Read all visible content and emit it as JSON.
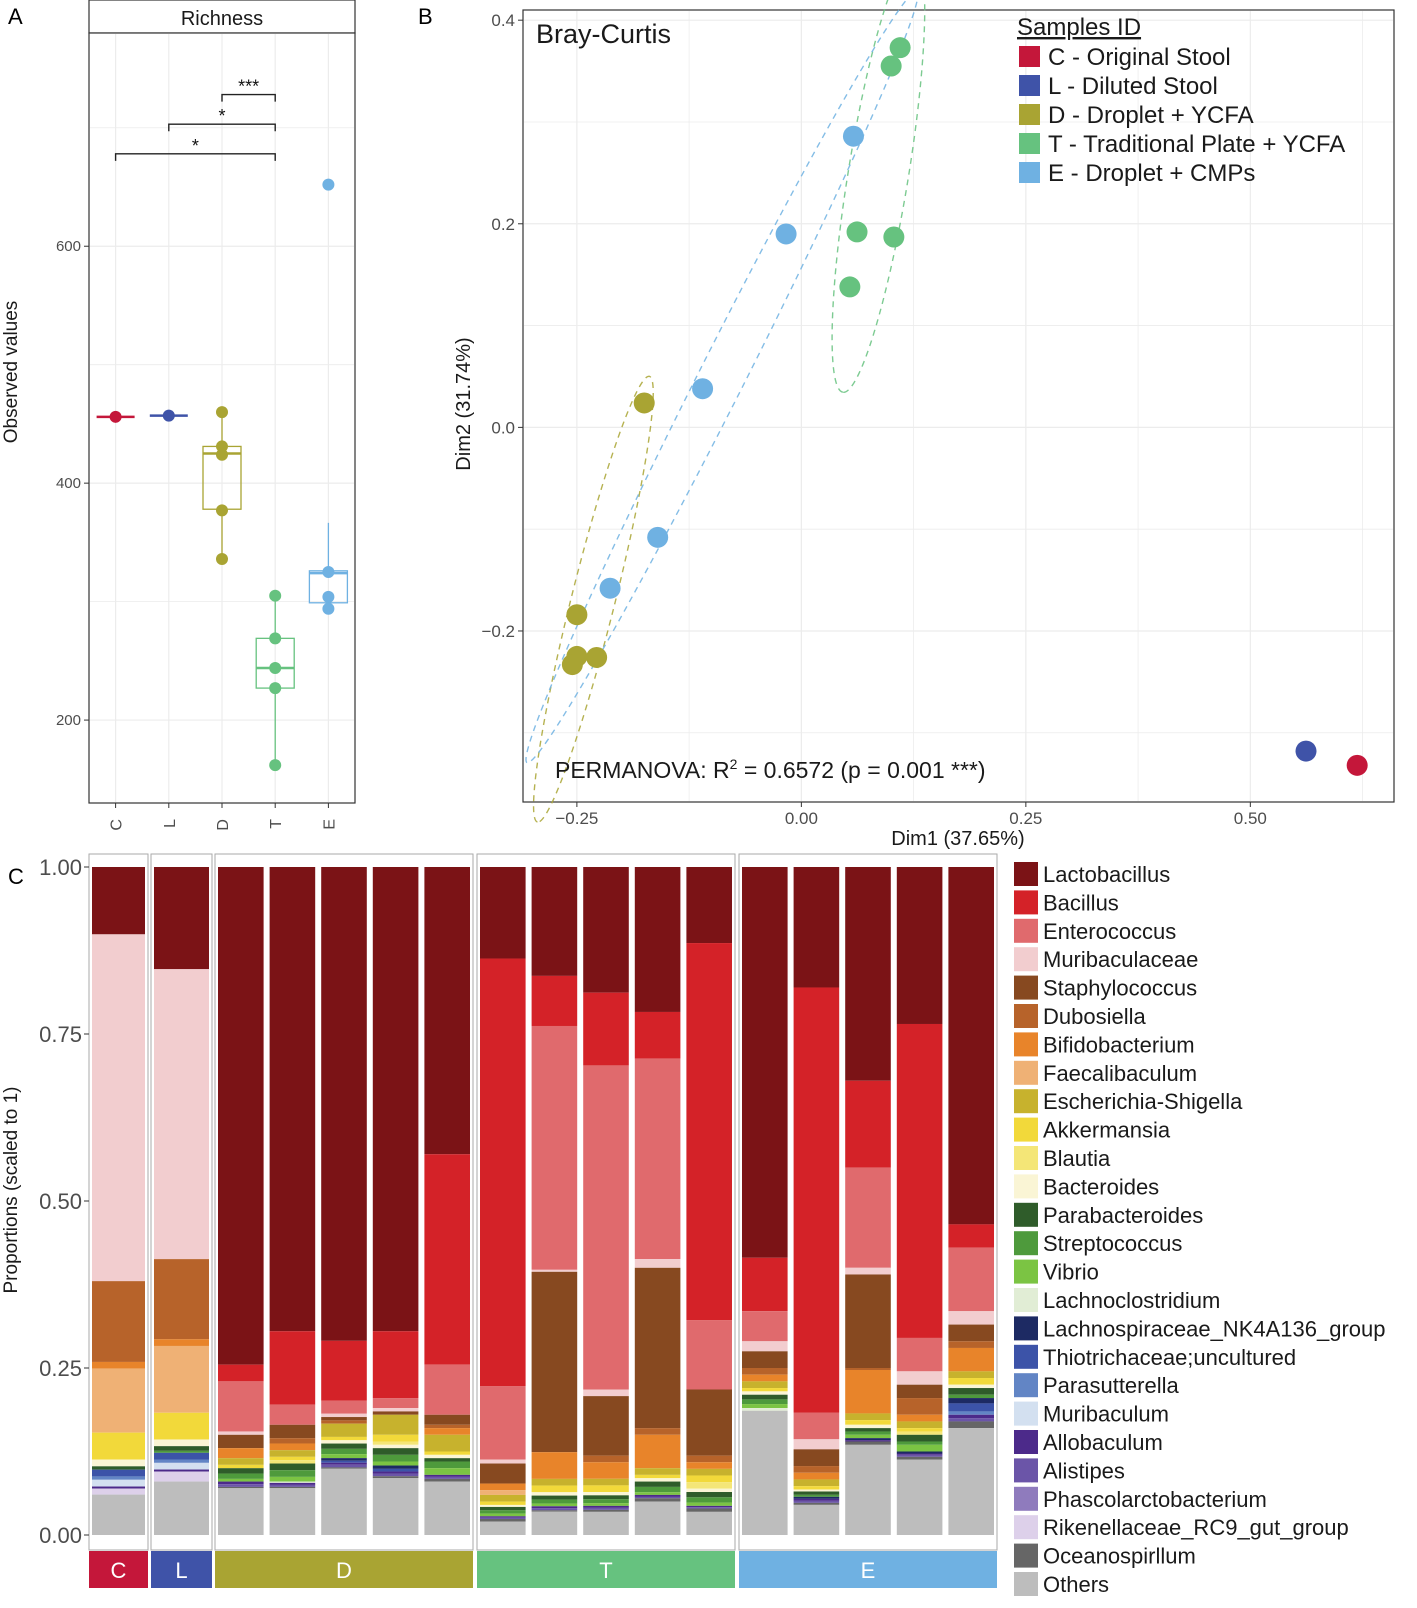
{
  "panel_labels": {
    "a": "A",
    "b": "B",
    "c": "C"
  },
  "colors": {
    "C": "#c4173a",
    "L": "#3f53a8",
    "D": "#a9a433",
    "T": "#66c27f",
    "E": "#6fb1e2"
  },
  "chart_data": [
    {
      "type": "box",
      "panel": "A",
      "title": "Richness",
      "xlabel": "",
      "ylabel": "Observed values",
      "ylim": [
        130,
        780
      ],
      "yticks": [
        200,
        400,
        600
      ],
      "categories": [
        "C",
        "L",
        "D",
        "T",
        "E"
      ],
      "boxes": [
        {
          "group": "C",
          "q1": 456,
          "median": 456,
          "q3": 456,
          "points": [
            456
          ]
        },
        {
          "group": "L",
          "q1": 457,
          "median": 457,
          "q3": 457,
          "points": [
            457
          ]
        },
        {
          "group": "D",
          "q1": 378,
          "median": 425,
          "q3": 431,
          "points": [
            460,
            431,
            424,
            377,
            336
          ]
        },
        {
          "group": "T",
          "q1": 227,
          "median": 244,
          "q3": 269,
          "points": [
            305,
            269,
            244,
            227,
            162
          ]
        },
        {
          "group": "E",
          "q1": 299,
          "median": 324,
          "q3": 326,
          "points": [
            652,
            325,
            304,
            294
          ]
        }
      ],
      "significance": [
        {
          "from": "D",
          "to": "T",
          "label": "***",
          "y": 728
        },
        {
          "from": "L",
          "to": "T",
          "label": "*",
          "y": 703
        },
        {
          "from": "C",
          "to": "T",
          "label": "*",
          "y": 678
        }
      ]
    },
    {
      "type": "scatter",
      "panel": "B",
      "title": "Bray-Curtis",
      "xlabel": "Dim1 (37.65%)",
      "ylabel": "Dim2 (31.74%)",
      "xlim": [
        -0.31,
        0.66
      ],
      "ylim": [
        -0.368,
        0.41
      ],
      "xticks": [
        "−0.25",
        "0.00",
        "0.25",
        "0.50"
      ],
      "xtick_values": [
        -0.25,
        0,
        0.25,
        0.5
      ],
      "yticks": [
        "−0.2",
        "0.0",
        "0.2",
        "0.4"
      ],
      "ytick_values": [
        -0.2,
        0,
        0.2,
        0.4
      ],
      "legend_title": "Samples ID",
      "annotation": {
        "prefix": "PERMANOVA: R",
        "sup": "2",
        "suffix": " = 0.6572 (p = 0.001 ***)"
      },
      "series": [
        {
          "name": "C - Original Stool",
          "key": "C",
          "points": [
            [
              0.619,
              -0.332
            ]
          ]
        },
        {
          "name": "L - Diluted Stool",
          "key": "L",
          "points": [
            [
              0.562,
              -0.318
            ]
          ]
        },
        {
          "name": "D - Droplet + YCFA",
          "key": "D",
          "points": [
            [
              -0.175,
              0.024
            ],
            [
              -0.25,
              -0.184
            ],
            [
              -0.25,
              -0.225
            ],
            [
              -0.228,
              -0.226
            ],
            [
              -0.255,
              -0.233
            ]
          ]
        },
        {
          "name": "T - Traditional Plate + YCFA",
          "key": "T",
          "points": [
            [
              0.11,
              0.373
            ],
            [
              0.1,
              0.355
            ],
            [
              0.062,
              0.192
            ],
            [
              0.103,
              0.187
            ],
            [
              0.054,
              0.138
            ]
          ]
        },
        {
          "name": "E - Droplet + CMPs",
          "key": "E",
          "points": [
            [
              0.058,
              0.286
            ],
            [
              -0.017,
              0.19
            ],
            [
              -0.11,
              0.038
            ],
            [
              -0.16,
              -0.108
            ],
            [
              -0.213,
              -0.158
            ]
          ]
        }
      ]
    },
    {
      "type": "stacked_bar",
      "panel": "C",
      "ylabel": "Proportions (scaled to 1)",
      "ylim": [
        0,
        1
      ],
      "yticks": [
        "0.00",
        "0.25",
        "0.50",
        "0.75",
        "1.00"
      ],
      "groups": [
        {
          "name": "C",
          "samples": [
            {
              "Lactobacillus": 0.1,
              "Muribaculaceae": 0.515,
              "Staphylococcus": 0.0,
              "Dubosiella": 0.12,
              "Bifidobacterium": 0.01,
              "Faecalibaculum": 0.095,
              "Akkermansia": 0.04,
              "Bacteroides": 0.01,
              "Parabacteroides": 0.005,
              "Thiotrichaceae;uncultured": 0.01,
              "Parasutterella": 0.005,
              "Muribaculum": 0.01,
              "Allobaculum": 0.003,
              "Rikenellaceae_RC9_gut_group": 0.009,
              "Others": 0.06
            }
          ]
        },
        {
          "name": "L",
          "samples": [
            {
              "Lactobacillus": 0.153,
              "Muribaculaceae": 0.434,
              "Staphylococcus": 0.0,
              "Dubosiella": 0.12,
              "Bifidobacterium": 0.01,
              "Faecalibaculum": 0.1,
              "Akkermansia": 0.04,
              "Bacteroides": 0.01,
              "Parabacteroides": 0.007,
              "Streptococcus": 0.003,
              "Thiotrichaceae;uncultured": 0.01,
              "Parasutterella": 0.005,
              "Muribaculum": 0.01,
              "Allobaculum": 0.003,
              "Rikenellaceae_RC9_gut_group": 0.015,
              "Others": 0.08
            }
          ]
        },
        {
          "name": "D",
          "samples": [
            {
              "Lactobacillus": 0.745,
              "Bacillus": 0.025,
              "Enterococcus": 0.075,
              "Muribaculaceae": 0.005,
              "Staphylococcus": 0.02,
              "Bifidobacterium": 0.015,
              "Escherichia-Shigella": 0.01,
              "Akkermansia": 0.005,
              "Parabacteroides": 0.008,
              "Streptococcus": 0.008,
              "Vibrio": 0.004,
              "Allobaculum": 0.004,
              "Alistipes": 0.004,
              "Oceanospirllum": 0.002,
              "Others": 0.07
            }
          ]
        },
        {
          "name": "",
          "samples": [
            {
              "Lactobacillus": 0.695,
              "Bacillus": 0.11,
              "Enterococcus": 0.03,
              "Staphylococcus": 0.02,
              "Dubosiella": 0.008,
              "Bifidobacterium": 0.01,
              "Escherichia-Shigella": 0.01,
              "Akkermansia": 0.005,
              "Blautia": 0.005,
              "Parabacteroides": 0.01,
              "Streptococcus": 0.01,
              "Vibrio": 0.007,
              "Lachnoclostridium": 0.002,
              "Allobaculum": 0.003,
              "Alistipes": 0.003,
              "Oceanospirllum": 0.002,
              "Others": 0.07
            }
          ]
        },
        {
          "name": "",
          "samples": [
            {
              "Lactobacillus": 0.715,
              "Bacillus": 0.09,
              "Enterococcus": 0.02,
              "Muribaculaceae": 0.005,
              "Staphylococcus": 0.005,
              "Dubosiella": 0.005,
              "Escherichia-Shigella": 0.02,
              "Akkermansia": 0.005,
              "Bacteroides": 0.005,
              "Parabacteroides": 0.008,
              "Streptococcus": 0.008,
              "Vibrio": 0.006,
              "Lachnospiraceae_NK4A136_group": 0.004,
              "Thiotrichaceae;uncultured": 0.003,
              "Allobaculum": 0.003,
              "Alistipes": 0.004,
              "Oceanospirllum": 0.002,
              "Others": 0.1
            }
          ]
        },
        {
          "name": "",
          "samples": [
            {
              "Lactobacillus": 0.695,
              "Bacillus": 0.1,
              "Enterococcus": 0.015,
              "Muribaculaceae": 0.005,
              "Staphylococcus": 0.005,
              "Escherichia-Shigella": 0.03,
              "Akkermansia": 0.01,
              "Blautia": 0.005,
              "Bacteroides": 0.005,
              "Parabacteroides": 0.01,
              "Streptococcus": 0.01,
              "Vibrio": 0.006,
              "Lachnospiraceae_NK4A136_group": 0.005,
              "Thiotrichaceae;uncultured": 0.004,
              "Allobaculum": 0.003,
              "Alistipes": 0.004,
              "Oceanospirllum": 0.003,
              "Others": 0.085
            }
          ]
        },
        {
          "name": "",
          "samples": [
            {
              "Lactobacillus": 0.43,
              "Bacillus": 0.315,
              "Enterococcus": 0.075,
              "Staphylococcus": 0.015,
              "Dubosiella": 0.005,
              "Bifidobacterium": 0.01,
              "Escherichia-Shigella": 0.025,
              "Akkermansia": 0.005,
              "Bacteroides": 0.005,
              "Parabacteroides": 0.005,
              "Streptococcus": 0.01,
              "Vibrio": 0.01,
              "Allobaculum": 0.003,
              "Alistipes": 0.003,
              "Oceanospirllum": 0.004,
              "Others": 0.08
            }
          ]
        },
        {
          "name": "T",
          "samples": [
            {
              "Lactobacillus": 0.137,
              "Bacillus": 0.64,
              "Enterococcus": 0.11,
              "Muribaculaceae": 0.006,
              "Staphylococcus": 0.03,
              "Bifidobacterium": 0.01,
              "Faecalibaculum": 0.007,
              "Escherichia-Shigella": 0.01,
              "Akkermansia": 0.005,
              "Bacteroides": 0.003,
              "Parabacteroides": 0.005,
              "Streptococcus": 0.005,
              "Vibrio": 0.004,
              "Allobaculum": 0.002,
              "Alistipes": 0.002,
              "Oceanospirllum": 0.004,
              "Others": 0.02
            }
          ]
        },
        {
          "name": "",
          "samples": [
            {
              "Lactobacillus": 0.163,
              "Bacillus": 0.075,
              "Enterococcus": 0.365,
              "Muribaculaceae": 0.003,
              "Staphylococcus": 0.27,
              "Bifidobacterium": 0.04,
              "Escherichia-Shigella": 0.01,
              "Akkermansia": 0.01,
              "Bacteroides": 0.005,
              "Parabacteroides": 0.006,
              "Streptococcus": 0.006,
              "Vibrio": 0.004,
              "Allobaculum": 0.003,
              "Alistipes": 0.003,
              "Oceanospirllum": 0.002,
              "Others": 0.035
            }
          ]
        },
        {
          "name": "",
          "samples": [
            {
              "Lactobacillus": 0.19,
              "Bacillus": 0.11,
              "Enterococcus": 0.49,
              "Muribaculaceae": 0.01,
              "Staphylococcus": 0.09,
              "Dubosiella": 0.01,
              "Bifidobacterium": 0.025,
              "Escherichia-Shigella": 0.01,
              "Akkermansia": 0.01,
              "Bacteroides": 0.005,
              "Parabacteroides": 0.006,
              "Streptococcus": 0.006,
              "Vibrio": 0.004,
              "Allobaculum": 0.003,
              "Alistipes": 0.003,
              "Oceanospirllum": 0.003,
              "Others": 0.035
            }
          ]
        },
        {
          "name": "",
          "samples": [
            {
              "Lactobacillus": 0.217,
              "Bacillus": 0.07,
              "Enterococcus": 0.3,
              "Muribaculaceae": 0.013,
              "Staphylococcus": 0.24,
              "Dubosiella": 0.01,
              "Bifidobacterium": 0.05,
              "Escherichia-Shigella": 0.01,
              "Akkermansia": 0.005,
              "Bacteroides": 0.005,
              "Parabacteroides": 0.008,
              "Streptococcus": 0.008,
              "Vibrio": 0.004,
              "Allobaculum": 0.003,
              "Alistipes": 0.002,
              "Oceanospirllum": 0.005,
              "Others": 0.05
            }
          ]
        },
        {
          "name": "",
          "samples": [
            {
              "Lactobacillus": 0.115,
              "Bacillus": 0.57,
              "Enterococcus": 0.105,
              "Muribaculaceae": 0.0,
              "Staphylococcus": 0.1,
              "Dubosiella": 0.01,
              "Bifidobacterium": 0.01,
              "Escherichia-Shigella": 0.01,
              "Akkermansia": 0.01,
              "Blautia": 0.01,
              "Bacteroides": 0.005,
              "Parabacteroides": 0.008,
              "Streptococcus": 0.008,
              "Vibrio": 0.005,
              "Allobaculum": 0.002,
              "Alistipes": 0.002,
              "Oceanospirllum": 0.005,
              "Others": 0.035
            }
          ]
        },
        {
          "name": "E",
          "samples": [
            {
              "Lactobacillus": 0.585,
              "Bacillus": 0.08,
              "Enterococcus": 0.045,
              "Muribaculaceae": 0.015,
              "Staphylococcus": 0.025,
              "Dubosiella": 0.01,
              "Bifidobacterium": 0.01,
              "Escherichia-Shigella": 0.01,
              "Akkermansia": 0.005,
              "Bacteroides": 0.005,
              "Parabacteroides": 0.007,
              "Streptococcus": 0.007,
              "Vibrio": 0.006,
              "Lachnoclostridium": 0.004,
              "Others": 0.186
            }
          ]
        },
        {
          "name": "",
          "samples": [
            {
              "Lactobacillus": 0.18,
              "Bacillus": 0.635,
              "Enterococcus": 0.04,
              "Muribaculaceae": 0.015,
              "Staphylococcus": 0.025,
              "Dubosiella": 0.01,
              "Bifidobacterium": 0.01,
              "Escherichia-Shigella": 0.01,
              "Akkermansia": 0.005,
              "Bacteroides": 0.003,
              "Parabacteroides": 0.005,
              "Streptococcus": 0.003,
              "Lachnospiraceae_NK4A136_group": 0.003,
              "Allobaculum": 0.003,
              "Alistipes": 0.003,
              "Oceanospirllum": 0.003,
              "Others": 0.045
            }
          ]
        },
        {
          "name": "",
          "samples": [
            {
              "Lactobacillus": 0.32,
              "Bacillus": 0.13,
              "Enterococcus": 0.15,
              "Muribaculaceae": 0.01,
              "Staphylococcus": 0.14,
              "Dubosiella": 0.003,
              "Bifidobacterium": 0.065,
              "Escherichia-Shigella": 0.01,
              "Akkermansia": 0.007,
              "Bacteroides": 0.005,
              "Parabacteroides": 0.005,
              "Streptococcus": 0.005,
              "Vibrio": 0.005,
              "Lachnospiraceae_NK4A136_group": 0.003,
              "Allobaculum": 0.002,
              "Oceanospirllum": 0.005,
              "Others": 0.135
            }
          ]
        },
        {
          "name": "",
          "samples": [
            {
              "Lactobacillus": 0.235,
              "Bacillus": 0.47,
              "Enterococcus": 0.05,
              "Muribaculaceae": 0.02,
              "Staphylococcus": 0.02,
              "Dubosiella": 0.025,
              "Bifidobacterium": 0.01,
              "Escherichia-Shigella": 0.01,
              "Akkermansia": 0.005,
              "Blautia": 0.005,
              "Parabacteroides": 0.01,
              "Streptococcus": 0.005,
              "Vibrio": 0.01,
              "Lachnospiraceae_NK4A136_group": 0.003,
              "Allobaculum": 0.002,
              "Alistipes": 0.003,
              "Oceanospirllum": 0.004,
              "Others": 0.113
            }
          ]
        },
        {
          "name": "",
          "samples": [
            {
              "Lactobacillus": 0.535,
              "Bacillus": 0.035,
              "Enterococcus": 0.095,
              "Muribaculaceae": 0.02,
              "Staphylococcus": 0.025,
              "Dubosiella": 0.01,
              "Bifidobacterium": 0.035,
              "Escherichia-Shigella": 0.01,
              "Akkermansia": 0.01,
              "Bacteroides": 0.005,
              "Parabacteroides": 0.01,
              "Streptococcus": 0.005,
              "Lachnospiraceae_NK4A136_group": 0.008,
              "Thiotrichaceae;uncultured": 0.012,
              "Parasutterella": 0.005,
              "Allobaculum": 0.005,
              "Alistipes": 0.005,
              "Oceanospirllum": 0.01,
              "Others": 0.16
            }
          ]
        }
      ],
      "bar_group_index": [
        0,
        1,
        2,
        2,
        2,
        2,
        2,
        3,
        3,
        3,
        3,
        3,
        4,
        4,
        4,
        4,
        4
      ],
      "strip_labels": [
        "C",
        "L",
        "D",
        "T",
        "E"
      ],
      "legend": [
        {
          "name": "Lactobacillus",
          "color": "#7b1316"
        },
        {
          "name": "Bacillus",
          "color": "#d42228"
        },
        {
          "name": "Enterococcus",
          "color": "#e06a6d"
        },
        {
          "name": "Muribaculaceae",
          "color": "#f2cdcf"
        },
        {
          "name": "Staphylococcus",
          "color": "#874920"
        },
        {
          "name": "Dubosiella",
          "color": "#b7632a"
        },
        {
          "name": "Bifidobacterium",
          "color": "#e8842a"
        },
        {
          "name": "Faecalibaculum",
          "color": "#efb175"
        },
        {
          "name": "Escherichia-Shigella",
          "color": "#c7b22d"
        },
        {
          "name": "Akkermansia",
          "color": "#f2d93a"
        },
        {
          "name": "Blautia",
          "color": "#f4e677"
        },
        {
          "name": "Bacteroides",
          "color": "#faf5d5"
        },
        {
          "name": "Parabacteroides",
          "color": "#2f5c2a"
        },
        {
          "name": "Streptococcus",
          "color": "#4e9a3c"
        },
        {
          "name": "Vibrio",
          "color": "#7bc443"
        },
        {
          "name": "Lachnoclostridium",
          "color": "#e1edd5"
        },
        {
          "name": "Lachnospiraceae_NK4A136_group",
          "color": "#1d2a63"
        },
        {
          "name": "Thiotrichaceae;uncultured",
          "color": "#3c53a8"
        },
        {
          "name": "Parasutterella",
          "color": "#6285c5"
        },
        {
          "name": "Muribaculum",
          "color": "#d3e0f0"
        },
        {
          "name": "Allobaculum",
          "color": "#4c2a8a"
        },
        {
          "name": "Alistipes",
          "color": "#6b55a8"
        },
        {
          "name": "Phascolarctobacterium",
          "color": "#8f7bbd"
        },
        {
          "name": "Rikenellaceae_RC9_gut_group",
          "color": "#ddd0ea"
        },
        {
          "name": "Oceanospirllum",
          "color": "#666666"
        },
        {
          "name": "Others",
          "color": "#bdbdbd"
        }
      ]
    }
  ]
}
